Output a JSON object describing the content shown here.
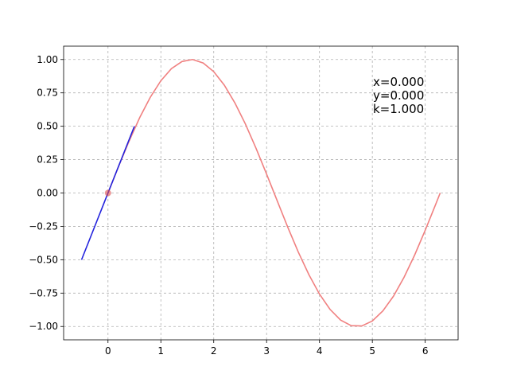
{
  "chart_data": {
    "type": "line",
    "xlim": [
      -0.839,
      6.622
    ],
    "ylim": [
      -1.1,
      1.1
    ],
    "xticks": [
      0,
      1,
      2,
      3,
      4,
      5,
      6
    ],
    "yticks": [
      {
        "value": 1.0,
        "label": "1.00"
      },
      {
        "value": 0.75,
        "label": "0.75"
      },
      {
        "value": 0.5,
        "label": "0.50"
      },
      {
        "value": 0.25,
        "label": "0.25"
      },
      {
        "value": 0.0,
        "label": "0.00"
      },
      {
        "value": -0.25,
        "label": "−0.25"
      },
      {
        "value": -0.5,
        "label": "−0.50"
      },
      {
        "value": -0.75,
        "label": "−0.75"
      },
      {
        "value": -1.0,
        "label": "−1.00"
      }
    ],
    "grid": true,
    "series": [
      {
        "color": "#f08080",
        "x": [
          0,
          0.2,
          0.4,
          0.6,
          0.8,
          1.0,
          1.2,
          1.4,
          1.6,
          1.8,
          2.0,
          2.2,
          2.4,
          2.6,
          2.8,
          3.0,
          3.2,
          3.4,
          3.6,
          3.8,
          4.0,
          4.2,
          4.4,
          4.6,
          4.8,
          5.0,
          5.2,
          5.4,
          5.6,
          5.8,
          6.0,
          6.2,
          6.283
        ],
        "values": [
          0,
          0.199,
          0.389,
          0.565,
          0.717,
          0.841,
          0.932,
          0.985,
          1.0,
          0.974,
          0.909,
          0.808,
          0.675,
          0.516,
          0.335,
          0.141,
          -0.058,
          -0.256,
          -0.443,
          -0.612,
          -0.757,
          -0.872,
          -0.952,
          -0.994,
          -0.996,
          -0.959,
          -0.883,
          -0.773,
          -0.631,
          -0.465,
          -0.279,
          -0.083,
          0.0
        ]
      },
      {
        "color": "#2222dd",
        "x": [
          -0.5,
          0.5
        ],
        "values": [
          -0.5,
          0.5
        ]
      }
    ],
    "point": {
      "color": "#e05050",
      "x": 0,
      "value": 0
    },
    "annotation": [
      "x=0.000",
      "y=0.000",
      "k=1.000"
    ]
  }
}
